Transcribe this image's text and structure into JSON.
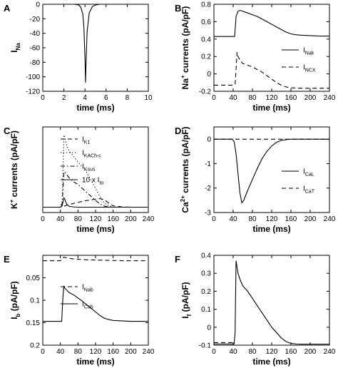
{
  "chart_data": [
    {
      "id": "A",
      "type": "line",
      "panel_label": "A",
      "xlabel": "time (ms)",
      "ylabel": {
        "main": "I",
        "sub": "Na"
      },
      "xlim": [
        0,
        10
      ],
      "ylim": [
        -120,
        0
      ],
      "xticks": [
        0,
        2,
        4,
        6,
        8,
        10
      ],
      "yticks": [
        0,
        -20,
        -40,
        -60,
        -80,
        -100,
        -120
      ],
      "show_legend": false,
      "series": [
        {
          "x": [
            0,
            3.0,
            3.4,
            3.6,
            3.8,
            3.9,
            4.0,
            4.05,
            4.1,
            4.2,
            4.4,
            4.7,
            5.0,
            5.4,
            6.0,
            10
          ],
          "y": [
            0,
            0,
            -1,
            -4,
            -14,
            -33,
            -75,
            -108,
            -80,
            -38,
            -12,
            -3,
            -1,
            0,
            0,
            0
          ],
          "style": "solid"
        }
      ]
    },
    {
      "id": "B",
      "type": "line",
      "panel_label": "B",
      "xlabel": "time (ms)",
      "ylabel": {
        "main": "Na",
        "sup": "+",
        "rest": " currents (pA/pF)"
      },
      "xlim": [
        0,
        240
      ],
      "ylim": [
        -0.2,
        0.8
      ],
      "xticks": [
        0,
        40,
        80,
        120,
        160,
        200,
        240
      ],
      "yticks": [
        0.8,
        0.6,
        0.4,
        0.2,
        0,
        -0.2
      ],
      "show_legend": true,
      "legend_position": "right",
      "series": [
        {
          "label": {
            "main": "I",
            "sub": "Nak"
          },
          "style": "solid",
          "x": [
            0,
            43,
            46,
            50,
            55,
            60,
            70,
            80,
            90,
            100,
            110,
            120,
            130,
            140,
            150,
            160,
            170,
            180,
            200,
            220,
            240
          ],
          "y": [
            0.43,
            0.43,
            0.66,
            0.72,
            0.73,
            0.72,
            0.7,
            0.68,
            0.66,
            0.63,
            0.6,
            0.57,
            0.54,
            0.51,
            0.48,
            0.46,
            0.45,
            0.445,
            0.44,
            0.435,
            0.435
          ]
        },
        {
          "label": {
            "main": "I",
            "sub": "NCX"
          },
          "style": "dashed",
          "x": [
            0,
            40,
            44,
            46,
            48,
            50,
            55,
            60,
            70,
            80,
            90,
            100,
            110,
            120,
            130,
            140,
            150,
            160,
            180,
            200,
            220,
            240
          ],
          "y": [
            -0.13,
            -0.13,
            -0.12,
            0.05,
            0.25,
            0.2,
            0.15,
            0.12,
            0.1,
            0.08,
            0.05,
            0.02,
            -0.02,
            -0.06,
            -0.1,
            -0.13,
            -0.15,
            -0.16,
            -0.165,
            -0.165,
            -0.165,
            -0.165
          ]
        }
      ]
    },
    {
      "id": "C",
      "type": "line",
      "panel_label": "C",
      "xlabel": "time (ms)",
      "ylabel": {
        "main": "K",
        "sup": "+",
        "rest": " currents (pA/pF)"
      },
      "xlim": [
        0,
        240
      ],
      "ylim": [
        -0.2,
        3.0
      ],
      "xticks": [
        0,
        40,
        80,
        120,
        160,
        200,
        240
      ],
      "yticks": [],
      "show_legend": true,
      "legend_position": "top-right",
      "series": [
        {
          "label": {
            "main": "I",
            "sub": "K1"
          },
          "style": "dashed",
          "x": [
            0,
            40,
            45,
            50,
            60,
            80,
            100,
            120,
            130,
            140,
            150,
            160,
            180,
            200,
            240
          ],
          "y": [
            0,
            0,
            0.02,
            0.05,
            0.1,
            0.18,
            0.25,
            0.3,
            0.32,
            0.28,
            0.15,
            0.05,
            0.01,
            0,
            0
          ]
        },
        {
          "label": {
            "main": "I",
            "sub": "KACh-c"
          },
          "style": "dotted",
          "x": [
            0,
            40,
            44,
            46,
            48,
            50,
            55,
            60,
            70,
            80,
            90,
            100,
            110,
            120,
            130,
            140,
            150,
            160,
            180,
            240
          ],
          "y": [
            0,
            0,
            0.2,
            1.5,
            2.7,
            2.6,
            2.3,
            2.1,
            1.9,
            1.7,
            1.5,
            1.3,
            1.0,
            0.7,
            0.4,
            0.15,
            0.05,
            0,
            0,
            0
          ]
        },
        {
          "label": {
            "main": "I",
            "sub": "Ksus"
          },
          "style": "dashdot",
          "x": [
            0,
            40,
            44,
            46,
            48,
            50,
            55,
            60,
            70,
            80,
            90,
            100,
            110,
            120,
            130,
            140,
            150,
            160,
            240
          ],
          "y": [
            0,
            0,
            0.1,
            0.7,
            1.3,
            1.32,
            1.2,
            1.1,
            0.95,
            0.85,
            0.7,
            0.55,
            0.4,
            0.25,
            0.12,
            0.04,
            0.01,
            0,
            0
          ]
        },
        {
          "label": {
            "main": "10 x I",
            "sub": "to"
          },
          "style": "solid",
          "x": [
            0,
            40,
            44,
            46,
            48,
            50,
            52,
            55,
            60,
            70,
            80,
            100,
            240
          ],
          "y": [
            0,
            0,
            0.05,
            0.2,
            0.35,
            0.3,
            0.2,
            0.1,
            0.03,
            0.01,
            0,
            0,
            0
          ]
        }
      ]
    },
    {
      "id": "D",
      "type": "line",
      "panel_label": "D",
      "xlabel": "time (ms)",
      "ylabel": {
        "main": "Ca",
        "sup": "2+",
        "rest": " currents (pA/pF)"
      },
      "xlim": [
        0,
        240
      ],
      "ylim": [
        -3,
        0.5
      ],
      "xticks": [
        0,
        40,
        80,
        120,
        160,
        200,
        240
      ],
      "yticks": [
        0,
        -1,
        -2,
        -3
      ],
      "show_legend": true,
      "legend_position": "right",
      "series": [
        {
          "label": {
            "main": "I",
            "sub": "CaL"
          },
          "style": "solid",
          "x": [
            0,
            38,
            42,
            46,
            50,
            54,
            58,
            62,
            66,
            70,
            80,
            90,
            100,
            110,
            120,
            130,
            140,
            150,
            160,
            240
          ],
          "y": [
            0,
            0,
            -0.1,
            -0.6,
            -1.4,
            -2.2,
            -2.6,
            -2.5,
            -2.3,
            -2.1,
            -1.65,
            -1.2,
            -0.8,
            -0.5,
            -0.28,
            -0.13,
            -0.05,
            -0.02,
            0,
            0
          ]
        },
        {
          "label": {
            "main": "I",
            "sub": "CaT"
          },
          "style": "dashed",
          "x": [
            0,
            240
          ],
          "y": [
            0,
            0
          ]
        }
      ]
    },
    {
      "id": "E",
      "type": "line",
      "panel_label": "E",
      "xlabel": "time (ms)",
      "ylabel": {
        "main": "I",
        "sub": "b",
        "rest": " (pA/pF)"
      },
      "xlim": [
        0,
        240
      ],
      "ylim": [
        -0.2,
        0
      ],
      "xticks": [
        0,
        40,
        80,
        120,
        160,
        200,
        240
      ],
      "yticks": [
        0,
        -0.05,
        -0.1,
        -0.15,
        -0.2
      ],
      "ytick_labels": [
        "",
        "0.05",
        "0.1",
        "0.15",
        "0.2"
      ],
      "show_legend": true,
      "legend_position": "right",
      "series": [
        {
          "label": {
            "main": "I",
            "sub": "Nab"
          },
          "style": "dashed",
          "x": [
            0,
            40,
            48,
            55,
            70,
            100,
            140,
            180,
            240
          ],
          "y": [
            -0.012,
            -0.012,
            -0.004,
            -0.006,
            -0.008,
            -0.01,
            -0.011,
            -0.012,
            -0.012
          ]
        },
        {
          "label": {
            "main": "I",
            "sub": "Cab"
          },
          "style": "solid",
          "x": [
            0,
            43,
            46,
            48,
            50,
            55,
            60,
            70,
            80,
            90,
            100,
            110,
            120,
            130,
            140,
            150,
            160,
            180,
            200,
            240
          ],
          "y": [
            -0.147,
            -0.147,
            -0.09,
            -0.068,
            -0.073,
            -0.078,
            -0.083,
            -0.088,
            -0.095,
            -0.102,
            -0.11,
            -0.118,
            -0.126,
            -0.134,
            -0.14,
            -0.143,
            -0.145,
            -0.146,
            -0.147,
            -0.147
          ]
        }
      ]
    },
    {
      "id": "F",
      "type": "line",
      "panel_label": "F",
      "xlabel": "time (ms)",
      "ylabel": {
        "main": "I",
        "sub": "f",
        "rest": " (pA/pF)"
      },
      "xlim": [
        0,
        240
      ],
      "ylim": [
        -0.1,
        0.4
      ],
      "xticks": [
        0,
        40,
        80,
        120,
        160,
        200,
        240
      ],
      "yticks": [
        0.4,
        0.3,
        0.2,
        0.1,
        0,
        -0.1
      ],
      "show_legend": false,
      "series": [
        {
          "style": "solid",
          "x": [
            0,
            42,
            44,
            46
          ],
          "y": [
            -0.093,
            -0.093,
            -0.03,
            0.37
          ]
        },
        {
          "style": "solid",
          "x": [
            46,
            50,
            55,
            60,
            70,
            80,
            90,
            100,
            110,
            120,
            130,
            140,
            150,
            160,
            170,
            180,
            200,
            240
          ],
          "y": [
            0.37,
            0.3,
            0.26,
            0.23,
            0.2,
            0.16,
            0.12,
            0.08,
            0.04,
            0.0,
            -0.03,
            -0.06,
            -0.08,
            -0.09,
            -0.093,
            -0.094,
            -0.094,
            -0.094
          ]
        },
        {
          "style": "dashed",
          "x": [
            0,
            44
          ],
          "y": [
            -0.086,
            -0.086
          ]
        }
      ]
    }
  ]
}
